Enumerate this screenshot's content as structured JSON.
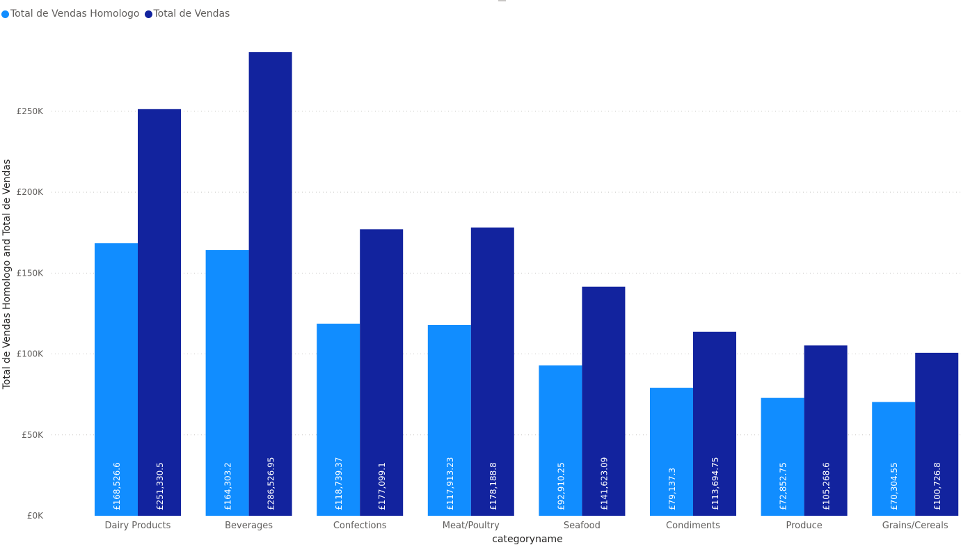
{
  "legend": {
    "items": [
      {
        "label": "Total de Vendas Homologo",
        "color": "#118DFF"
      },
      {
        "label": "Total de Vendas",
        "color": "#12239E"
      }
    ]
  },
  "chart_data": {
    "type": "bar",
    "xlabel": "categoryname",
    "ylabel": "Total de Vendas Homologo and Total de Vendas",
    "ylim": [
      0,
      286526.95
    ],
    "yticks": [
      {
        "value": 0,
        "label": "£0K"
      },
      {
        "value": 50000,
        "label": "£50K"
      },
      {
        "value": 100000,
        "label": "£100K"
      },
      {
        "value": 150000,
        "label": "£150K"
      },
      {
        "value": 200000,
        "label": "£200K"
      },
      {
        "value": 250000,
        "label": "£250K"
      }
    ],
    "grid": true,
    "legend_position": "top-left",
    "categories": [
      "Dairy Products",
      "Beverages",
      "Confections",
      "Meat/Poultry",
      "Seafood",
      "Condiments",
      "Produce",
      "Grains/Cereals"
    ],
    "series": [
      {
        "name": "Total de Vendas Homologo",
        "color": "#118DFF",
        "values": [
          168526.6,
          164303.2,
          118739.37,
          117913.23,
          92910.25,
          79137.3,
          72852.75,
          70304.55
        ],
        "labels": [
          "£168,526.6",
          "£164,303.2",
          "£118,739.37",
          "£117,913.23",
          "£92,910.25",
          "£79,137.3",
          "£72,852.75",
          "£70,304.55"
        ]
      },
      {
        "name": "Total de Vendas",
        "color": "#12239E",
        "values": [
          251330.5,
          286526.95,
          177099.1,
          178188.8,
          141623.09,
          113694.75,
          105268.6,
          100726.8
        ],
        "labels": [
          "£251,330.5",
          "£286,526.95",
          "£177,099.1",
          "£178,188.8",
          "£141,623.09",
          "£113,694.75",
          "£105,268.6",
          "£100,726.8"
        ]
      }
    ]
  }
}
